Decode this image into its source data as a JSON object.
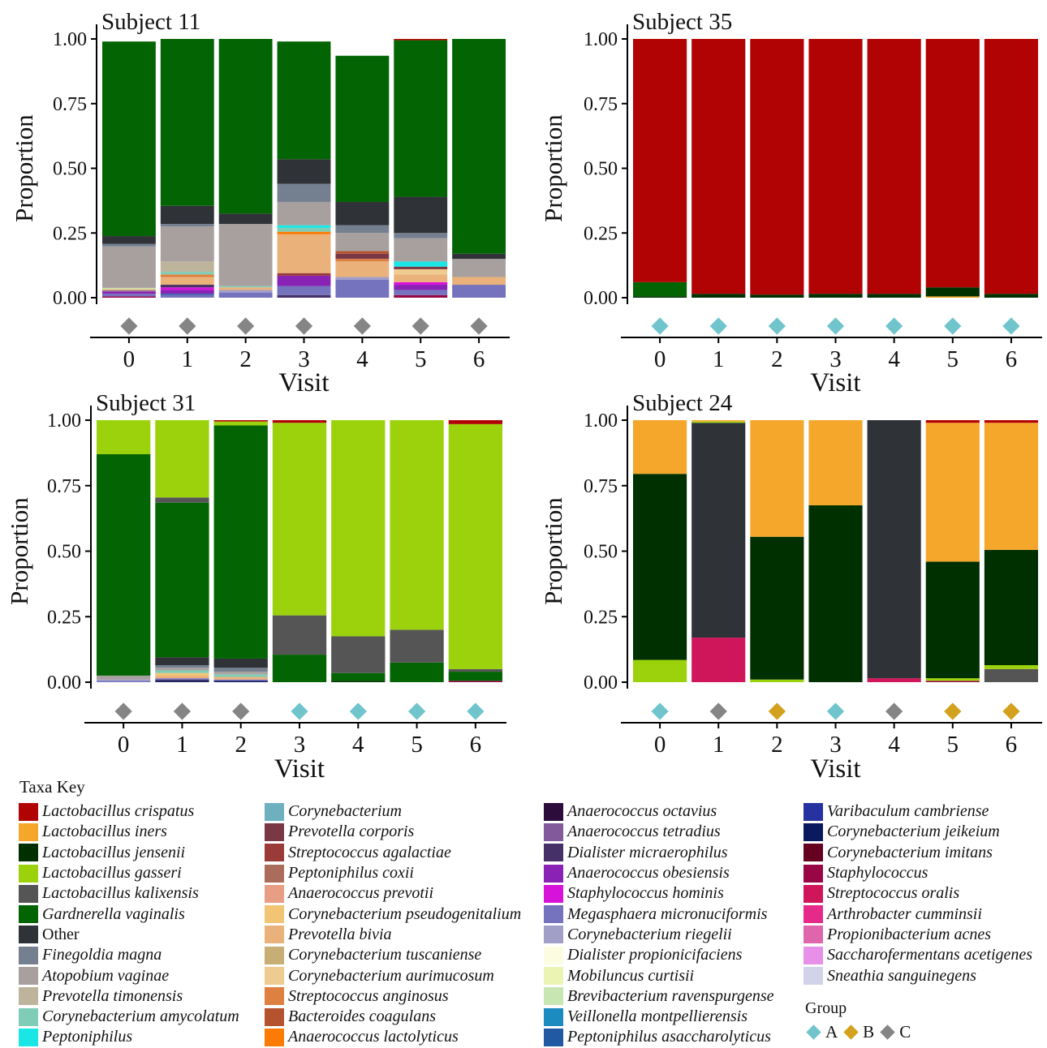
{
  "taxa": [
    {
      "name": "Lactobacillus crispatus",
      "color": "#b10303"
    },
    {
      "name": "Lactobacillus iners",
      "color": "#f4a72a"
    },
    {
      "name": "Lactobacillus jensenii",
      "color": "#003000"
    },
    {
      "name": "Lactobacillus gasseri",
      "color": "#9bd20c"
    },
    {
      "name": "Lactobacillus kalixensis",
      "color": "#555555"
    },
    {
      "name": "Gardnerella vaginalis",
      "color": "#026402"
    },
    {
      "name": "Other",
      "color": "#2f3237"
    },
    {
      "name": "Finegoldia magna",
      "color": "#748090"
    },
    {
      "name": "Atopobium vaginae",
      "color": "#a8a09f"
    },
    {
      "name": "Prevotella timonensis",
      "color": "#beb49b"
    },
    {
      "name": "Corynebacterium amycolatum",
      "color": "#7fcdb6"
    },
    {
      "name": "Peptoniphilus",
      "color": "#1ae6e6"
    },
    {
      "name": "Corynebacterium",
      "color": "#6eb0c0"
    },
    {
      "name": "Prevotella corporis",
      "color": "#7a3845"
    },
    {
      "name": "Streptococcus agalactiae",
      "color": "#9a3b3a"
    },
    {
      "name": "Peptoniphilus coxii",
      "color": "#ac6c5c"
    },
    {
      "name": "Anaerococcus prevotii",
      "color": "#e89e84"
    },
    {
      "name": "Corynebacterium pseudogenitalium",
      "color": "#f2c574"
    },
    {
      "name": "Prevotella bivia",
      "color": "#eab27a"
    },
    {
      "name": "Corynebacterium tuscaniense",
      "color": "#c6ae74"
    },
    {
      "name": "Corynebacterium aurimucosum",
      "color": "#eecb8e"
    },
    {
      "name": "Streptococcus anginosus",
      "color": "#de8040"
    },
    {
      "name": "Bacteroides coagulans",
      "color": "#b6532f"
    },
    {
      "name": "Anaerococcus lactolyticus",
      "color": "#fb7b05"
    },
    {
      "name": "Anaerococcus octavius",
      "color": "#2b0c3a"
    },
    {
      "name": "Anaerococcus tetradius",
      "color": "#82599a"
    },
    {
      "name": "Dialister micraerophilus",
      "color": "#453167"
    },
    {
      "name": "Anaerococcus obesiensis",
      "color": "#8a22b6"
    },
    {
      "name": "Staphylococcus hominis",
      "color": "#d712d9"
    },
    {
      "name": "Megasphaera micronuciformis",
      "color": "#7572be"
    },
    {
      "name": "Corynebacterium riegelii",
      "color": "#a19fc8"
    },
    {
      "name": "Dialister propionicifaciens",
      "color": "#fcfde0"
    },
    {
      "name": "Mobiluncus curtisii",
      "color": "#ecf4b4"
    },
    {
      "name": "Brevibacterium ravenspurgense",
      "color": "#c8e6b2"
    },
    {
      "name": "Veillonella montpellierensis",
      "color": "#1c8cc0"
    },
    {
      "name": "Peptoniphilus asaccharolyticus",
      "color": "#215aa2"
    },
    {
      "name": "Varibaculum cambriense",
      "color": "#2532a0"
    },
    {
      "name": "Corynebacterium jeikeium",
      "color": "#0b1a5e"
    },
    {
      "name": "Corynebacterium imitans",
      "color": "#650020"
    },
    {
      "name": "Staphylococcus",
      "color": "#980646"
    },
    {
      "name": "Streptococcus oralis",
      "color": "#d0165a"
    },
    {
      "name": "Arthrobacter cumminsii",
      "color": "#e62a8a"
    },
    {
      "name": "Propionibacterium acnes",
      "color": "#df66aa"
    },
    {
      "name": "Saccharofermentans acetigenes",
      "color": "#e88fe8"
    },
    {
      "name": "Sneathia sanguinegens",
      "color": "#d2d3e8"
    }
  ],
  "legend": {
    "title": "Taxa Key",
    "group_title": "Group",
    "groups": [
      {
        "label": "A",
        "color": "#70c5cd"
      },
      {
        "label": "B",
        "color": "#d3a11e"
      },
      {
        "label": "C",
        "color": "#858585"
      }
    ]
  },
  "chart_data": [
    {
      "type": "bar",
      "title": "Subject 11",
      "xlabel": "Visit",
      "ylabel": "Proportion",
      "categories": [
        "0",
        "1",
        "2",
        "3",
        "4",
        "5",
        "6"
      ],
      "ylim": [
        0,
        1
      ],
      "yticks": [
        "0.00",
        "0.25",
        "0.50",
        "0.75",
        "1.00"
      ],
      "groups": [
        "C",
        "C",
        "C",
        "C",
        "C",
        "C",
        "C"
      ],
      "stacks": [
        [
          [
            "Staphylococcus",
            0.005
          ],
          [
            "Megasphaera micronuciformis",
            0.01
          ],
          [
            "Anaerococcus obesiensis",
            0.008
          ],
          [
            "Anaerococcus tetradius",
            0.005
          ],
          [
            "Prevotella bivia",
            0.005
          ],
          [
            "Brevibacterium ravenspurgense",
            0.005
          ],
          [
            "Atopobium vaginae",
            0.16
          ],
          [
            "Finegoldia magna",
            0.01
          ],
          [
            "Other",
            0.03
          ],
          [
            "Gardnerella vaginalis",
            0.752
          ]
        ],
        [
          [
            "Megasphaera micronuciformis",
            0.01
          ],
          [
            "Peptoniphilus asaccharolyticus",
            0.005
          ],
          [
            "Anaerococcus obesiensis",
            0.015
          ],
          [
            "Staphylococcus hominis",
            0.01
          ],
          [
            "Dialister micraerophilus",
            0.01
          ],
          [
            "Prevotella bivia",
            0.03
          ],
          [
            "Streptococcus anginosus",
            0.01
          ],
          [
            "Corynebacterium amycolatum",
            0.01
          ],
          [
            "Prevotella timonensis",
            0.04
          ],
          [
            "Atopobium vaginae",
            0.135
          ],
          [
            "Finegoldia magna",
            0.01
          ],
          [
            "Other",
            0.07
          ],
          [
            "Gardnerella vaginalis",
            0.645
          ]
        ],
        [
          [
            "Megasphaera micronuciformis",
            0.02
          ],
          [
            "Corynebacterium riegelii",
            0.01
          ],
          [
            "Prevotella bivia",
            0.01
          ],
          [
            "Corynebacterium amycolatum",
            0.005
          ],
          [
            "Atopobium vaginae",
            0.24
          ],
          [
            "Other",
            0.04
          ],
          [
            "Gardnerella vaginalis",
            0.675
          ]
        ],
        [
          [
            "Dialister micraerophilus",
            0.01
          ],
          [
            "Megasphaera micronuciformis",
            0.035
          ],
          [
            "Anaerococcus obesiensis",
            0.04
          ],
          [
            "Streptococcus agalactiae",
            0.01
          ],
          [
            "Prevotella bivia",
            0.15
          ],
          [
            "Anaerococcus lactolyticus",
            0.01
          ],
          [
            "Corynebacterium amycolatum",
            0.015
          ],
          [
            "Peptoniphilus",
            0.01
          ],
          [
            "Atopobium vaginae",
            0.09
          ],
          [
            "Finegoldia magna",
            0.07
          ],
          [
            "Other",
            0.095
          ],
          [
            "Gardnerella vaginalis",
            0.455
          ]
        ],
        [
          [
            "Megasphaera micronuciformis",
            0.07
          ],
          [
            "Corynebacterium riegelii",
            0.01
          ],
          [
            "Prevotella bivia",
            0.06
          ],
          [
            "Streptococcus anginosus",
            0.01
          ],
          [
            "Prevotella corporis",
            0.02
          ],
          [
            "Bacteroides coagulans",
            0.01
          ],
          [
            "Atopobium vaginae",
            0.07
          ],
          [
            "Finegoldia magna",
            0.03
          ],
          [
            "Other",
            0.09
          ],
          [
            "Gardnerella vaginalis",
            0.565
          ]
        ],
        [
          [
            "Staphylococcus",
            0.01
          ],
          [
            "Megasphaera micronuciformis",
            0.02
          ],
          [
            "Anaerococcus obesiensis",
            0.02
          ],
          [
            "Staphylococcus hominis",
            0.01
          ],
          [
            "Prevotella bivia",
            0.03
          ],
          [
            "Corynebacterium aurimucosum",
            0.02
          ],
          [
            "Prevotella corporis",
            0.01
          ],
          [
            "Peptoniphilus",
            0.02
          ],
          [
            "Atopobium vaginae",
            0.09
          ],
          [
            "Finegoldia magna",
            0.02
          ],
          [
            "Other",
            0.14
          ],
          [
            "Gardnerella vaginalis",
            0.605
          ],
          [
            "Lactobacillus crispatus",
            0.005
          ]
        ],
        [
          [
            "Megasphaera micronuciformis",
            0.05
          ],
          [
            "Prevotella bivia",
            0.03
          ],
          [
            "Atopobium vaginae",
            0.07
          ],
          [
            "Other",
            0.02
          ],
          [
            "Gardnerella vaginalis",
            0.83
          ]
        ]
      ]
    },
    {
      "type": "bar",
      "title": "Subject 35",
      "xlabel": "Visit",
      "ylabel": "Proportion",
      "categories": [
        "0",
        "1",
        "2",
        "3",
        "4",
        "5",
        "6"
      ],
      "ylim": [
        0,
        1
      ],
      "yticks": [
        "0.00",
        "0.25",
        "0.50",
        "0.75",
        "1.00"
      ],
      "groups": [
        "A",
        "A",
        "A",
        "A",
        "A",
        "A",
        "A"
      ],
      "stacks": [
        [
          [
            "Lactobacillus jensenii",
            0.005
          ],
          [
            "Gardnerella vaginalis",
            0.055
          ],
          [
            "Lactobacillus crispatus",
            0.94
          ]
        ],
        [
          [
            "Lactobacillus jensenii",
            0.015
          ],
          [
            "Lactobacillus crispatus",
            0.985
          ]
        ],
        [
          [
            "Lactobacillus jensenii",
            0.012
          ],
          [
            "Lactobacillus crispatus",
            0.988
          ]
        ],
        [
          [
            "Lactobacillus jensenii",
            0.015
          ],
          [
            "Lactobacillus crispatus",
            0.985
          ]
        ],
        [
          [
            "Lactobacillus jensenii",
            0.015
          ],
          [
            "Lactobacillus crispatus",
            0.985
          ]
        ],
        [
          [
            "Lactobacillus iners",
            0.005
          ],
          [
            "Lactobacillus jensenii",
            0.035
          ],
          [
            "Lactobacillus crispatus",
            0.96
          ]
        ],
        [
          [
            "Lactobacillus jensenii",
            0.015
          ],
          [
            "Lactobacillus crispatus",
            0.985
          ]
        ]
      ]
    },
    {
      "type": "bar",
      "title": "Subject 31",
      "xlabel": "Visit",
      "ylabel": "Proportion",
      "categories": [
        "0",
        "1",
        "2",
        "3",
        "4",
        "5",
        "6"
      ],
      "ylim": [
        0,
        1
      ],
      "yticks": [
        "0.00",
        "0.25",
        "0.50",
        "0.75",
        "1.00"
      ],
      "groups": [
        "C",
        "C",
        "C",
        "A",
        "A",
        "A",
        "A"
      ],
      "stacks": [
        [
          [
            "Megasphaera micronuciformis",
            0.005
          ],
          [
            "Corynebacterium riegelii",
            0.005
          ],
          [
            "Atopobium vaginae",
            0.015
          ],
          [
            "Gardnerella vaginalis",
            0.845
          ],
          [
            "Lactobacillus gasseri",
            0.13
          ]
        ],
        [
          [
            "Corynebacterium jeikeium",
            0.005
          ],
          [
            "Dialister micraerophilus",
            0.005
          ],
          [
            "Megasphaera micronuciformis",
            0.005
          ],
          [
            "Prevotella bivia",
            0.01
          ],
          [
            "Corynebacterium pseudogenitalium",
            0.01
          ],
          [
            "Corynebacterium amycolatum",
            0.01
          ],
          [
            "Atopobium vaginae",
            0.01
          ],
          [
            "Finegoldia magna",
            0.01
          ],
          [
            "Other",
            0.03
          ],
          [
            "Gardnerella vaginalis",
            0.59
          ],
          [
            "Lactobacillus kalixensis",
            0.02
          ],
          [
            "Lactobacillus gasseri",
            0.295
          ]
        ],
        [
          [
            "Corynebacterium jeikeium",
            0.005
          ],
          [
            "Megasphaera micronuciformis",
            0.005
          ],
          [
            "Prevotella bivia",
            0.01
          ],
          [
            "Corynebacterium amycolatum",
            0.01
          ],
          [
            "Atopobium vaginae",
            0.01
          ],
          [
            "Finegoldia magna",
            0.015
          ],
          [
            "Other",
            0.035
          ],
          [
            "Gardnerella vaginalis",
            0.89
          ],
          [
            "Lactobacillus gasseri",
            0.015
          ],
          [
            "Lactobacillus crispatus",
            0.005
          ]
        ],
        [
          [
            "Gardnerella vaginalis",
            0.105
          ],
          [
            "Lactobacillus kalixensis",
            0.15
          ],
          [
            "Lactobacillus gasseri",
            0.735
          ],
          [
            "Lactobacillus crispatus",
            0.01
          ]
        ],
        [
          [
            "Lactobacillus jensenii",
            0.005
          ],
          [
            "Gardnerella vaginalis",
            0.03
          ],
          [
            "Lactobacillus kalixensis",
            0.14
          ],
          [
            "Lactobacillus gasseri",
            0.825
          ]
        ],
        [
          [
            "Gardnerella vaginalis",
            0.075
          ],
          [
            "Lactobacillus kalixensis",
            0.125
          ],
          [
            "Lactobacillus gasseri",
            0.8
          ]
        ],
        [
          [
            "Staphylococcus",
            0.005
          ],
          [
            "Gardnerella vaginalis",
            0.035
          ],
          [
            "Lactobacillus kalixensis",
            0.01
          ],
          [
            "Lactobacillus gasseri",
            0.935
          ],
          [
            "Lactobacillus crispatus",
            0.015
          ]
        ]
      ]
    },
    {
      "type": "bar",
      "title": "Subject 24",
      "xlabel": "Visit",
      "ylabel": "Proportion",
      "categories": [
        "0",
        "1",
        "2",
        "3",
        "4",
        "5",
        "6"
      ],
      "ylim": [
        0,
        1
      ],
      "yticks": [
        "0.00",
        "0.25",
        "0.50",
        "0.75",
        "1.00"
      ],
      "groups": [
        "A",
        "C",
        "B",
        "A",
        "C",
        "B",
        "B"
      ],
      "stacks": [
        [
          [
            "Lactobacillus gasseri",
            0.085
          ],
          [
            "Lactobacillus jensenii",
            0.71
          ],
          [
            "Lactobacillus iners",
            0.205
          ]
        ],
        [
          [
            "Streptococcus oralis",
            0.17
          ],
          [
            "Other",
            0.82
          ],
          [
            "Lactobacillus gasseri",
            0.005
          ],
          [
            "Lactobacillus iners",
            0.005
          ]
        ],
        [
          [
            "Lactobacillus gasseri",
            0.01
          ],
          [
            "Lactobacillus jensenii",
            0.545
          ],
          [
            "Lactobacillus iners",
            0.445
          ]
        ],
        [
          [
            "Lactobacillus jensenii",
            0.675
          ],
          [
            "Lactobacillus iners",
            0.325
          ]
        ],
        [
          [
            "Streptococcus oralis",
            0.015
          ],
          [
            "Other",
            0.985
          ]
        ],
        [
          [
            "Staphylococcus",
            0.005
          ],
          [
            "Lactobacillus gasseri",
            0.01
          ],
          [
            "Lactobacillus jensenii",
            0.445
          ],
          [
            "Lactobacillus iners",
            0.53
          ],
          [
            "Lactobacillus crispatus",
            0.01
          ]
        ],
        [
          [
            "Lactobacillus kalixensis",
            0.05
          ],
          [
            "Lactobacillus gasseri",
            0.015
          ],
          [
            "Lactobacillus jensenii",
            0.44
          ],
          [
            "Lactobacillus iners",
            0.485
          ],
          [
            "Lactobacillus crispatus",
            0.01
          ]
        ]
      ]
    }
  ]
}
